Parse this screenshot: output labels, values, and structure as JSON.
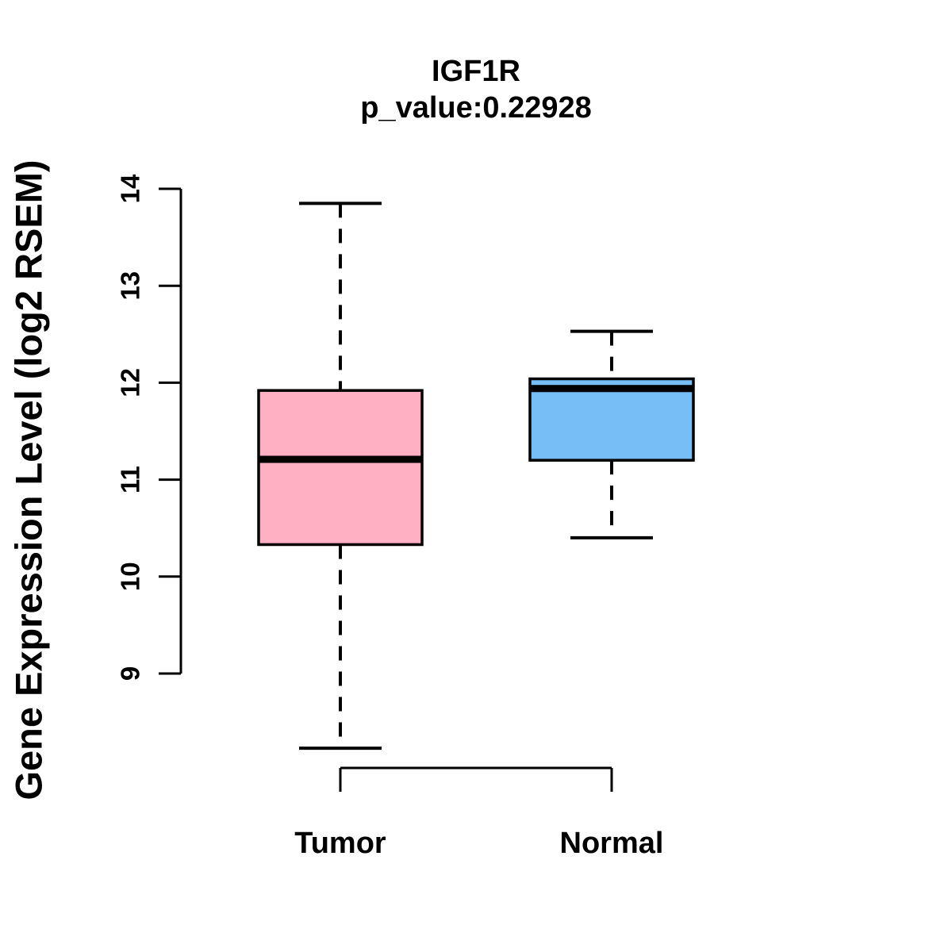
{
  "chart_data": {
    "type": "boxplot",
    "title": "IGF1R",
    "subtitle": "p_value:0.22928",
    "gene": "IGF1R",
    "p_value": 0.22928,
    "ylabel": "Gene Expression Level (log2 RSEM)",
    "xlabel": "",
    "ylim": [
      9,
      14
    ],
    "y_ticks": [
      9,
      10,
      11,
      12,
      13,
      14
    ],
    "grid": false,
    "legend": "none",
    "categories": [
      "Tumor",
      "Normal"
    ],
    "series": [
      {
        "name": "Tumor",
        "color": "#FFB1C3",
        "whisker_low": 8.23,
        "q1": 10.33,
        "median": 11.21,
        "q3": 11.92,
        "whisker_high": 13.85
      },
      {
        "name": "Normal",
        "color": "#76BEF5",
        "whisker_low": 10.4,
        "q1": 11.2,
        "median": 11.94,
        "q3": 12.04,
        "whisker_high": 12.53
      }
    ],
    "stroke_color": "#000000",
    "background_color": "#FFFFFF",
    "whisker_style": "dashed"
  }
}
